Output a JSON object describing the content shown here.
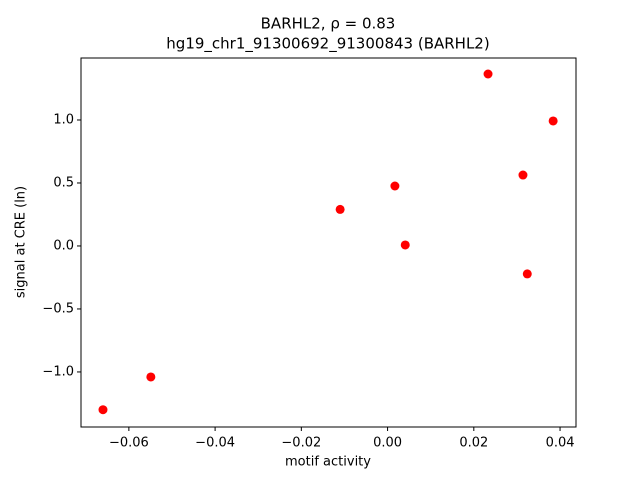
{
  "chart_data": {
    "type": "scatter",
    "title": "BARHL2, ρ = 0.83",
    "subtitle": "hg19_chr1_91300692_91300843 (BARHL2)",
    "x_label": "motif activity",
    "y_label": "signal at CRE (ln)",
    "color": "#ff0000",
    "x": [
      -0.066,
      -0.0549,
      -0.011,
      0.0017,
      0.0041,
      0.0233,
      0.0314,
      0.0324,
      0.0384
    ],
    "values": [
      -1.3,
      -1.04,
      0.29,
      0.476,
      0.008,
      1.365,
      0.563,
      -0.222,
      0.992
    ],
    "xlim": [
      -0.0711,
      0.0437
    ],
    "ylim": [
      -1.437,
      1.492
    ],
    "xticks": [
      {
        "value": -0.06,
        "label": "−0.06"
      },
      {
        "value": -0.04,
        "label": "−0.04"
      },
      {
        "value": -0.02,
        "label": "−0.02"
      },
      {
        "value": 0,
        "label": "0.00"
      },
      0.02,
      0.04
    ],
    "yticks": [
      {
        "value": -1,
        "label": "−1.0"
      },
      {
        "value": -0.5,
        "label": "−0.5"
      },
      {
        "value": 0,
        "label": "0.0"
      },
      0.5,
      {
        "value": 1,
        "label": "1.0"
      }
    ]
  }
}
